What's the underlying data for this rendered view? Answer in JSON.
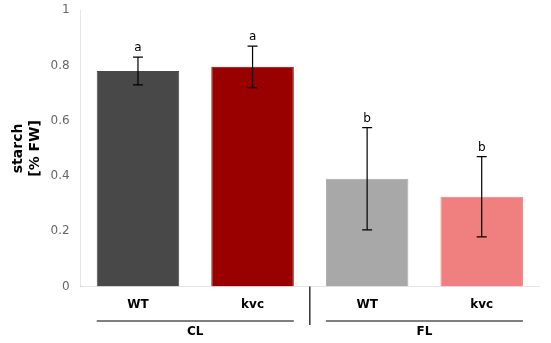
{
  "chart_data": {
    "type": "bar",
    "categories": [
      "WT",
      "kvc",
      "WT",
      "kvc"
    ],
    "groups": [
      "CL",
      "CL",
      "FL",
      "FL"
    ],
    "values": [
      0.78,
      0.795,
      0.39,
      0.325
    ],
    "errors": [
      0.05,
      0.075,
      0.185,
      0.145
    ],
    "significance": [
      "a",
      "a",
      "b",
      "b"
    ],
    "colors": [
      "#484848",
      "#990000",
      "#a8a8a8",
      "#f08080"
    ],
    "ylabel": [
      "starch",
      "[% FW]"
    ],
    "ylim": [
      0,
      1.0
    ],
    "yticks": [
      0,
      0.2,
      0.4,
      0.6,
      0.8,
      1.0
    ],
    "grid": false
  }
}
